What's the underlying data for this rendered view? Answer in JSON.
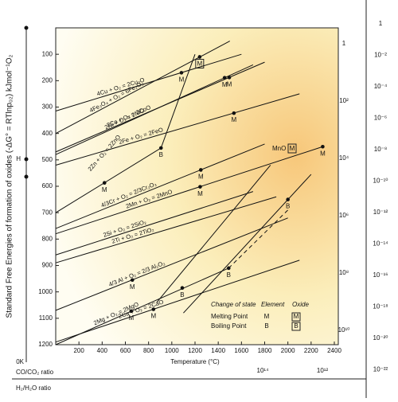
{
  "chart_data": {
    "type": "line",
    "y_label": "Standard Free Energies of formation of oxides (-ΔG° = RTlnp₀₂) kJmol⁻¹O₂",
    "x_label": "Temperature (°C)",
    "xlim": [
      0,
      2400
    ],
    "ylim": [
      0,
      1200
    ],
    "y_inverted": true,
    "xticks": [
      200,
      400,
      600,
      800,
      1000,
      1200,
      1400,
      1600,
      1800,
      2000,
      2200,
      2400
    ],
    "yticks": [
      100,
      200,
      300,
      400,
      500,
      600,
      700,
      800,
      900,
      1000,
      1100,
      1200
    ],
    "line_color": "#111",
    "series": [
      {
        "name": "4Fe₃O₄ + O₂ = 6Fe₂O₃",
        "x": [
          0,
          1500
        ],
        "values": [
          400,
          50
        ],
        "points": [
          {
            "x": 1240,
            "y": 110,
            "label": "M",
            "boxed": true
          }
        ]
      },
      {
        "name": "4Cu + O₂ = 2Cu₂O",
        "x": [
          0,
          1600
        ],
        "values": [
          315,
          100
        ],
        "points": [
          {
            "x": 1083,
            "y": 170,
            "label": "M"
          }
        ]
      },
      {
        "name": "2Ni + O₂ = 2NiO",
        "x": [
          0,
          1700
        ],
        "values": [
          480,
          140
        ],
        "points": [
          {
            "x": 1455,
            "y": 189,
            "label": "M"
          }
        ]
      },
      {
        "name": "2Co + O₂ = 2CoO",
        "x": [
          0,
          1800
        ],
        "values": [
          470,
          130
        ],
        "points": [
          {
            "x": 1495,
            "y": 188,
            "label": "M"
          }
        ]
      },
      {
        "name": "2Fe + O₂ = 2FeO",
        "x": [
          0,
          2100
        ],
        "values": [
          520,
          250
        ],
        "points": [
          {
            "x": 1535,
            "y": 323,
            "label": "M"
          }
        ]
      },
      {
        "name": "2Zn + O₂ = 2ZnO",
        "x": [
          0,
          907,
          1200
        ],
        "values": [
          700,
          455,
          100
        ],
        "points": [
          {
            "x": 420,
            "y": 587,
            "label": "M"
          },
          {
            "x": 907,
            "y": 455,
            "label": "B"
          }
        ]
      },
      {
        "name": "4/3Cr + O₂ = 2/3Cr₂O₃",
        "x": [
          0,
          1800
        ],
        "values": [
          760,
          440
        ],
        "points": [
          {
            "x": 1250,
            "y": 538,
            "label": "M"
          }
        ]
      },
      {
        "name": "2Mn + O₂ = 2MnO",
        "x": [
          0,
          2300
        ],
        "values": [
          780,
          450
        ],
        "points": [
          {
            "x": 1244,
            "y": 602,
            "label": "M"
          },
          {
            "x": 2300,
            "y": 450,
            "label": "M"
          }
        ]
      },
      {
        "name": "2Si + O₂ = 2SiO₂",
        "x": [
          0,
          1700
        ],
        "values": [
          860,
          620
        ],
        "points": []
      },
      {
        "name": "2Ti + O₂ = 2TiO₂",
        "x": [
          0,
          1900
        ],
        "values": [
          890,
          640
        ],
        "points": []
      },
      {
        "name": "4/3 Al + O₂ = 2/3 Al₂O₃",
        "x": [
          0,
          2000
        ],
        "values": [
          1070,
          720
        ],
        "points": [
          {
            "x": 660,
            "y": 955,
            "label": "M"
          }
        ]
      },
      {
        "name": "2Mg + O₂ = 2MgO",
        "x": [
          0,
          1490
        ],
        "values": [
          1200,
          910
        ],
        "points": [
          {
            "x": 650,
            "y": 1073,
            "label": "M"
          },
          {
            "x": 1090,
            "y": 985,
            "label": "B"
          },
          {
            "x": 1490,
            "y": 910,
            "label": "B"
          }
        ]
      },
      {
        "name": "2Ca + O₂ = 2CaO",
        "x": [
          0,
          2100
        ],
        "values": [
          1190,
          880
        ],
        "points": [
          {
            "x": 842,
            "y": 1066,
            "label": "M"
          }
        ]
      },
      {
        "x": [
          870,
          1850
        ],
        "values": [
          1040,
          520
        ],
        "points": []
      },
      {
        "x": [
          1100,
          2200
        ],
        "values": [
          1080,
          555
        ],
        "points": [
          {
            "x": 2000,
            "y": 650,
            "label": "B"
          }
        ]
      },
      {
        "x": [
          1490,
          2000
        ],
        "values": [
          910,
          690
        ],
        "dashed": true,
        "points": []
      }
    ],
    "oxide_label": "MnO",
    "oxide_box": "M",
    "left_labels": [
      "H",
      "0K"
    ],
    "inner_scale": [
      "1",
      "10²",
      "10⁴",
      "10⁶",
      "10⁸",
      "10¹⁰"
    ],
    "outer_scale": [
      "1",
      "10⁻²",
      "10⁻⁴",
      "10⁻⁶",
      "10⁻⁸",
      "10⁻¹⁰",
      "10⁻¹²",
      "10⁻¹⁴",
      "10⁻¹⁶",
      "10⁻¹⁸",
      "10⁻²⁰",
      "10⁻²²"
    ],
    "co_label": "CO/CO₂ ratio",
    "co_ticks": [
      "10¹⁴",
      "10¹²"
    ],
    "h2_label": "H₂/H₂O ratio",
    "legend": {
      "title": "Change of state",
      "element": "Element",
      "oxide": "Oxide",
      "rows": [
        {
          "label": "Melting Point",
          "element": "M",
          "oxide": "M"
        },
        {
          "label": "Boiling Point",
          "element": "B",
          "oxide": "B"
        }
      ]
    }
  }
}
